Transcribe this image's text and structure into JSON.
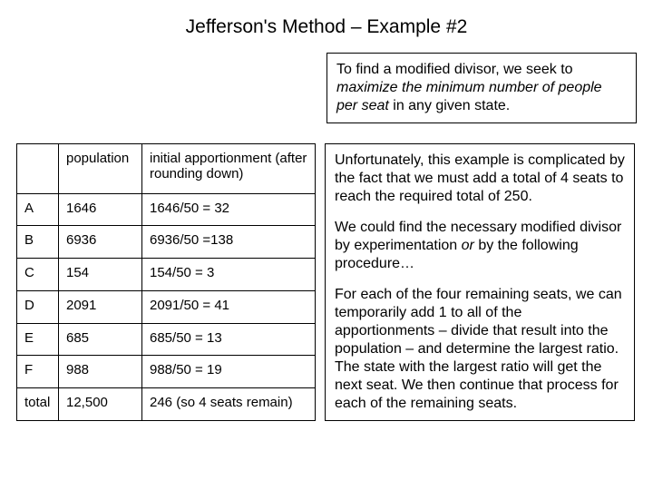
{
  "title": "Jefferson's Method – Example #2",
  "intro": {
    "lead": "To find a modified divisor, we seek to ",
    "emph": "maximize the minimum number of people per seat",
    "tail": " in any given state."
  },
  "table": {
    "headers": {
      "state": "",
      "pop": "population",
      "apportion": "initial apportionment (after rounding down)"
    },
    "rows": [
      {
        "state": "A",
        "pop": "1646",
        "apportion": "1646/50 = 32"
      },
      {
        "state": "B",
        "pop": "6936",
        "apportion": "6936/50 =138"
      },
      {
        "state": "C",
        "pop": "154",
        "apportion": "154/50 = 3"
      },
      {
        "state": "D",
        "pop": "2091",
        "apportion": "2091/50 = 41"
      },
      {
        "state": "E",
        "pop": "685",
        "apportion": "685/50 = 13"
      },
      {
        "state": "F",
        "pop": "988",
        "apportion": "988/50 = 19"
      }
    ],
    "total": {
      "state": "total",
      "pop": "12,500",
      "apportion": "246 (so 4 seats remain)"
    }
  },
  "paras": {
    "p1": "Unfortunately, this example is complicated by the fact that we must add a total of 4 seats to reach the required total of 250.",
    "p2a": "We could find the necessary modified divisor by experimentation ",
    "p2b": "or",
    "p2c": " by the following procedure…",
    "p3": "For each of the four remaining seats, we can temporarily add 1 to all of the apportionments – divide that result into the population – and determine the largest ratio.  The state with the largest ratio will get the next seat.  We then continue that process for each of the remaining seats."
  }
}
